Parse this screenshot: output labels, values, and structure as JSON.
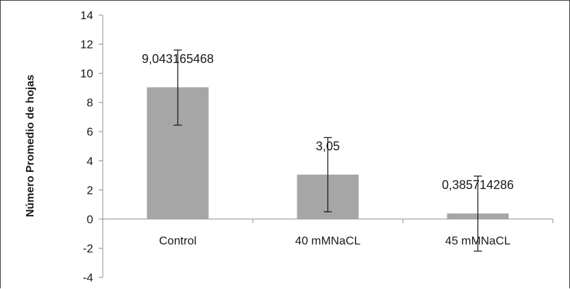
{
  "chart_data": {
    "type": "bar",
    "title": "",
    "xlabel": "",
    "ylabel": "Número Promedio  de hojas",
    "categories": [
      "Control",
      "40 mMNaCL",
      "45 mMNaCL"
    ],
    "values": [
      9.043165468,
      3.05,
      0.385714286
    ],
    "data_labels": [
      "9,043165468",
      "3,05",
      "0,385714286"
    ],
    "error_bars": [
      {
        "low": 6.45,
        "high": 11.6
      },
      {
        "low": 0.5,
        "high": 5.6
      },
      {
        "low": -2.2,
        "high": 2.95
      }
    ],
    "ylim": [
      -4,
      14
    ],
    "yticks": [
      -4,
      -2,
      0,
      2,
      4,
      6,
      8,
      10,
      12,
      14
    ],
    "ytick_labels": [
      "-4",
      "-2",
      "0",
      "2",
      "4",
      "6",
      "8",
      "10",
      "12",
      "14"
    ],
    "grid": false,
    "legend": "none",
    "bar_color": "#a6a6a6",
    "axis_color": "#8c8c8c",
    "error_bar_color": "#1a1a1a"
  }
}
